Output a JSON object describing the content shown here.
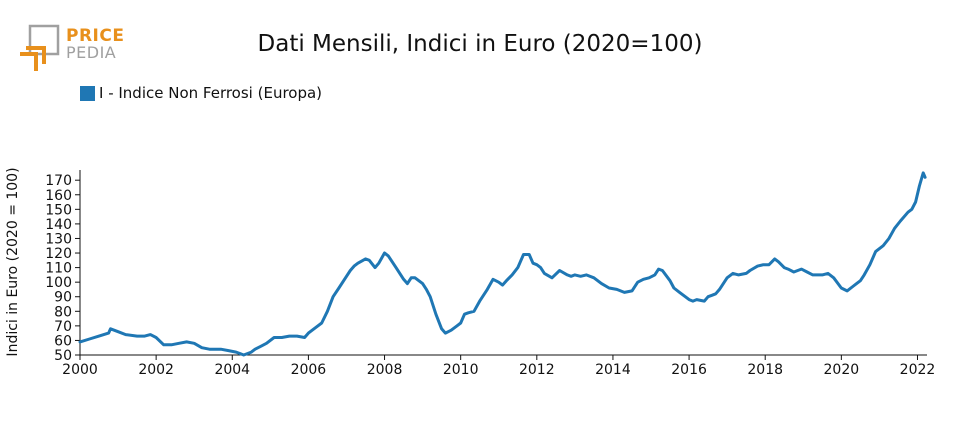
{
  "logo": {
    "top": "PRICE",
    "bottom": "PEDIA",
    "colors": {
      "orange": "#e8901c",
      "gray": "#a0a0a0"
    }
  },
  "title": "Dati Mensili, Indici in Euro (2020=100)",
  "legend": {
    "label": "I - Indice Non Ferrosi (Europa)",
    "color": "#1f77b4"
  },
  "chart_data": {
    "type": "line",
    "title": "Dati Mensili, Indici in Euro (2020=100)",
    "xlabel": "",
    "ylabel": "Indici in Euro (2020 = 100)",
    "xlim": [
      2000.0,
      2022.25
    ],
    "ylim": [
      50,
      177
    ],
    "xticks": [
      2000,
      2002,
      2004,
      2006,
      2008,
      2010,
      2012,
      2014,
      2016,
      2018,
      2020,
      2022
    ],
    "yticks": [
      50,
      60,
      70,
      80,
      90,
      100,
      110,
      120,
      130,
      140,
      150,
      160,
      170
    ],
    "legend_position": "top-left",
    "grid": false,
    "series": [
      {
        "name": "I - Indice Non Ferrosi (Europa)",
        "color": "#1f77b4",
        "x": [
          2000.0,
          2000.25,
          2000.5,
          2000.75,
          2000.8,
          2001.0,
          2001.2,
          2001.5,
          2001.7,
          2001.85,
          2002.0,
          2002.2,
          2002.4,
          2002.6,
          2002.8,
          2003.0,
          2003.2,
          2003.4,
          2003.55,
          2003.7,
          2003.9,
          2004.1,
          2004.2,
          2004.3,
          2004.5,
          2004.6,
          2004.75,
          2004.9,
          2005.1,
          2005.3,
          2005.5,
          2005.7,
          2005.9,
          2006.0,
          2006.1,
          2006.2,
          2006.35,
          2006.5,
          2006.65,
          2006.8,
          2007.0,
          2007.1,
          2007.2,
          2007.3,
          2007.5,
          2007.6,
          2007.75,
          2007.85,
          2008.0,
          2008.1,
          2008.2,
          2008.3,
          2008.5,
          2008.6,
          2008.7,
          2008.8,
          2008.9,
          2009.0,
          2009.1,
          2009.2,
          2009.35,
          2009.5,
          2009.6,
          2009.75,
          2009.9,
          2010.0,
          2010.1,
          2010.2,
          2010.35,
          2010.5,
          2010.7,
          2010.85,
          2011.0,
          2011.1,
          2011.2,
          2011.35,
          2011.5,
          2011.65,
          2011.8,
          2011.9,
          2012.0,
          2012.1,
          2012.2,
          2012.4,
          2012.6,
          2012.8,
          2012.9,
          2013.0,
          2013.15,
          2013.3,
          2013.5,
          2013.7,
          2013.9,
          2014.1,
          2014.2,
          2014.3,
          2014.5,
          2014.65,
          2014.8,
          2014.95,
          2015.1,
          2015.2,
          2015.3,
          2015.5,
          2015.6,
          2015.75,
          2015.9,
          2016.0,
          2016.1,
          2016.2,
          2016.4,
          2016.5,
          2016.6,
          2016.7,
          2016.8,
          2017.0,
          2017.15,
          2017.3,
          2017.5,
          2017.6,
          2017.8,
          2017.95,
          2018.1,
          2018.25,
          2018.35,
          2018.5,
          2018.6,
          2018.75,
          2018.95,
          2019.1,
          2019.25,
          2019.5,
          2019.65,
          2019.8,
          2020.0,
          2020.15,
          2020.3,
          2020.4,
          2020.5,
          2020.6,
          2020.75,
          2020.9,
          2021.1,
          2021.25,
          2021.4,
          2021.55,
          2021.75,
          2021.85,
          2021.95,
          2022.05,
          2022.15,
          2022.2
        ],
        "values": [
          59,
          61,
          63,
          65,
          68,
          66,
          64,
          63,
          63,
          64,
          62,
          57,
          57,
          58,
          59,
          58,
          55,
          54,
          54,
          54,
          53,
          52,
          51,
          50,
          52,
          54,
          56,
          58,
          62,
          62,
          63,
          63,
          62,
          65,
          67,
          69,
          72,
          80,
          90,
          96,
          104,
          108,
          111,
          113,
          116,
          115,
          110,
          113,
          120,
          118,
          114,
          110,
          102,
          99,
          103,
          103,
          101,
          99,
          95,
          90,
          78,
          68,
          65,
          67,
          70,
          72,
          78,
          79,
          80,
          87,
          95,
          102,
          100,
          98,
          101,
          105,
          110,
          119,
          119,
          113,
          112,
          110,
          106,
          103,
          108,
          105,
          104,
          105,
          104,
          105,
          103,
          99,
          96,
          95,
          94,
          93,
          94,
          100,
          102,
          103,
          105,
          109,
          108,
          101,
          96,
          93,
          90,
          88,
          87,
          88,
          87,
          90,
          91,
          92,
          95,
          103,
          106,
          105,
          106,
          108,
          111,
          112,
          112,
          116,
          114,
          110,
          109,
          107,
          109,
          107,
          105,
          105,
          106,
          103,
          96,
          94,
          97,
          99,
          101,
          105,
          112,
          121,
          125,
          130,
          137,
          142,
          148,
          150,
          155,
          166,
          175,
          172
        ]
      }
    ]
  }
}
